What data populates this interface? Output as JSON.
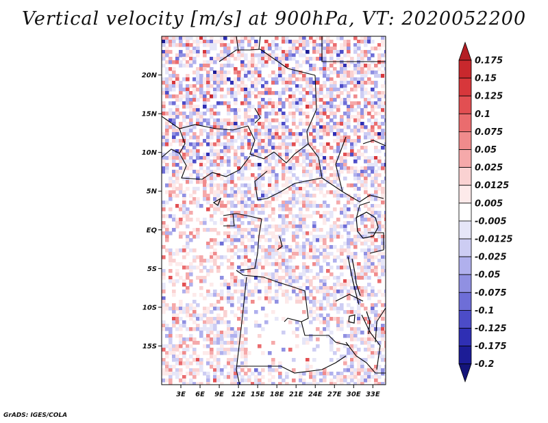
{
  "chart_data": {
    "type": "heatmap",
    "title": "Vertical velocity [m/s] at 900hPa, VT: 2020052200",
    "variable": "Vertical velocity",
    "units": "m/s",
    "level": "900hPa",
    "valid_time": "2020052200",
    "x_axis": {
      "label": "",
      "range": [
        0,
        35
      ],
      "ticks": [
        3,
        6,
        9,
        12,
        15,
        18,
        21,
        24,
        27,
        30,
        33
      ],
      "tick_labels": [
        "3E",
        "6E",
        "9E",
        "12E",
        "15E",
        "18E",
        "21E",
        "24E",
        "27E",
        "30E",
        "33E"
      ]
    },
    "y_axis": {
      "label": "",
      "range": [
        -20,
        25
      ],
      "ticks": [
        20,
        15,
        10,
        5,
        0,
        -5,
        -10,
        -15
      ],
      "tick_labels": [
        "20N",
        "15N",
        "10N",
        "5N",
        "EQ",
        "5S",
        "10S",
        "15S"
      ]
    },
    "colorbar": {
      "levels": [
        "0.175",
        "0.15",
        "0.125",
        "0.1",
        "0.075",
        "0.05",
        "0.025",
        "0.0125",
        "0.005",
        "-0.005",
        "-0.0125",
        "-0.025",
        "-0.05",
        "-0.075",
        "-0.1",
        "-0.125",
        "-0.175",
        "-0.2"
      ],
      "colors": [
        "#b41e24",
        "#c8282d",
        "#d7373b",
        "#e24f52",
        "#ea6c6e",
        "#f08b8c",
        "#f5a9aa",
        "#fad2d2",
        "#fdeaea",
        "#ffffff",
        "#e6e6f8",
        "#cdcdf3",
        "#b0b0ed",
        "#9090e2",
        "#6e6ed7",
        "#4c4cc8",
        "#2f2fb4",
        "#1c1c96",
        "#14147a"
      ],
      "extend": "both"
    },
    "grid": false,
    "region": "Central Africa"
  },
  "footer": {
    "credit": "GrADS: IGES/COLA"
  }
}
